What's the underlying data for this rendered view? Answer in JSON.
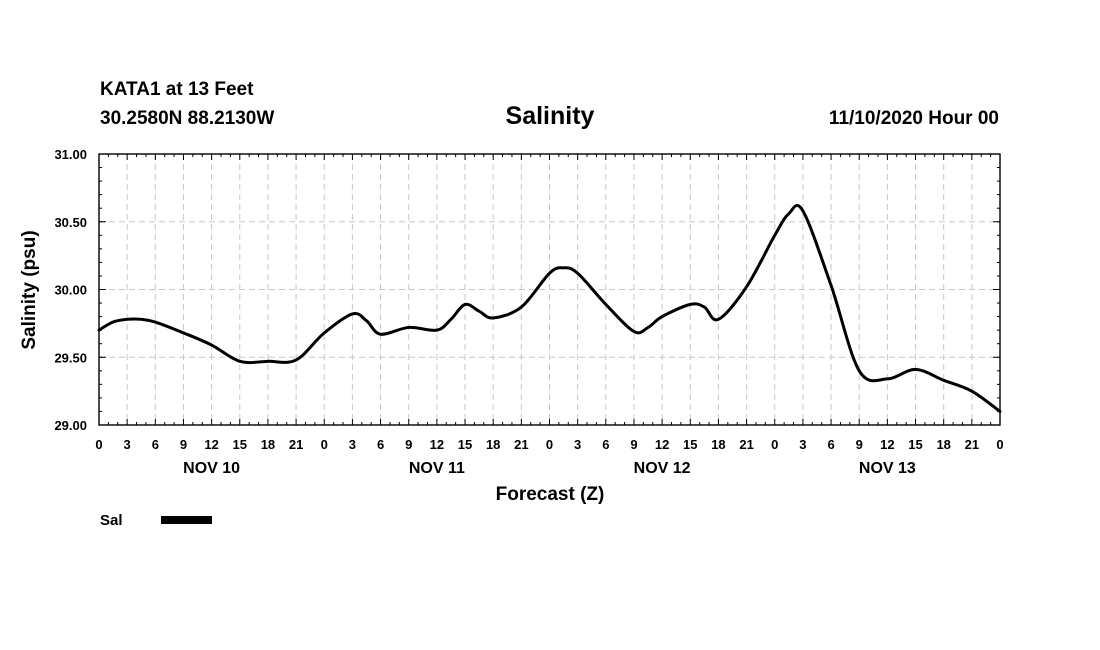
{
  "header": {
    "station": "KATA1 at 13 Feet",
    "coords": "30.2580N 88.2130W",
    "title": "Salinity",
    "datetime": "11/10/2020 Hour 00"
  },
  "chart_data": {
    "type": "line",
    "title": "Salinity",
    "xlabel": "Forecast (Z)",
    "ylabel": "Salinity (psu)",
    "ylim": [
      29.0,
      31.0
    ],
    "xlim": [
      0,
      96
    ],
    "grid": true,
    "yticks": [
      {
        "value": 29.0,
        "label": "29.00"
      },
      {
        "value": 29.5,
        "label": "29.50"
      },
      {
        "value": 30.0,
        "label": "30.00"
      },
      {
        "value": 30.5,
        "label": "30.50"
      },
      {
        "value": 31.0,
        "label": "31.00"
      }
    ],
    "xticks": [
      {
        "hour": 0,
        "label": "0"
      },
      {
        "hour": 3,
        "label": "3"
      },
      {
        "hour": 6,
        "label": "6"
      },
      {
        "hour": 9,
        "label": "9"
      },
      {
        "hour": 12,
        "label": "12"
      },
      {
        "hour": 15,
        "label": "15"
      },
      {
        "hour": 18,
        "label": "18"
      },
      {
        "hour": 21,
        "label": "21"
      },
      {
        "hour": 24,
        "label": "0"
      },
      {
        "hour": 27,
        "label": "3"
      },
      {
        "hour": 30,
        "label": "6"
      },
      {
        "hour": 33,
        "label": "9"
      },
      {
        "hour": 36,
        "label": "12"
      },
      {
        "hour": 39,
        "label": "15"
      },
      {
        "hour": 42,
        "label": "18"
      },
      {
        "hour": 45,
        "label": "21"
      },
      {
        "hour": 48,
        "label": "0"
      },
      {
        "hour": 51,
        "label": "3"
      },
      {
        "hour": 54,
        "label": "6"
      },
      {
        "hour": 57,
        "label": "9"
      },
      {
        "hour": 60,
        "label": "12"
      },
      {
        "hour": 63,
        "label": "15"
      },
      {
        "hour": 66,
        "label": "18"
      },
      {
        "hour": 69,
        "label": "21"
      },
      {
        "hour": 72,
        "label": "0"
      },
      {
        "hour": 75,
        "label": "3"
      },
      {
        "hour": 78,
        "label": "6"
      },
      {
        "hour": 81,
        "label": "9"
      },
      {
        "hour": 84,
        "label": "12"
      },
      {
        "hour": 87,
        "label": "15"
      },
      {
        "hour": 90,
        "label": "18"
      },
      {
        "hour": 93,
        "label": "21"
      },
      {
        "hour": 96,
        "label": "0"
      }
    ],
    "day_labels": [
      {
        "hour": 12,
        "label": "NOV 10"
      },
      {
        "hour": 36,
        "label": "NOV 11"
      },
      {
        "hour": 60,
        "label": "NOV 12"
      },
      {
        "hour": 84,
        "label": "NOV 13"
      }
    ],
    "series": [
      {
        "name": "Sal",
        "color": "#000000",
        "x": [
          0,
          1.5,
          3,
          4.5,
          6,
          9,
          12,
          15,
          18,
          21,
          24,
          27,
          28.5,
          30,
          33,
          36,
          37.5,
          39,
          40.5,
          42,
          45,
          48,
          49.5,
          51,
          54,
          57,
          58.5,
          60,
          63,
          64.5,
          66,
          69,
          72,
          73.5,
          75,
          78,
          81,
          84,
          87,
          90,
          93,
          96
        ],
        "values": [
          29.7,
          29.76,
          29.78,
          29.78,
          29.76,
          29.68,
          29.59,
          29.47,
          29.47,
          29.48,
          29.68,
          29.82,
          29.77,
          29.67,
          29.72,
          29.7,
          29.78,
          29.89,
          29.84,
          29.79,
          29.87,
          30.12,
          30.16,
          30.12,
          29.89,
          29.69,
          29.72,
          29.8,
          29.89,
          29.87,
          29.78,
          30.02,
          30.4,
          30.56,
          30.58,
          30.03,
          29.4,
          29.34,
          29.41,
          29.33,
          29.25,
          29.1
        ]
      }
    ]
  },
  "legend": {
    "label": "Sal",
    "color": "#000000"
  }
}
